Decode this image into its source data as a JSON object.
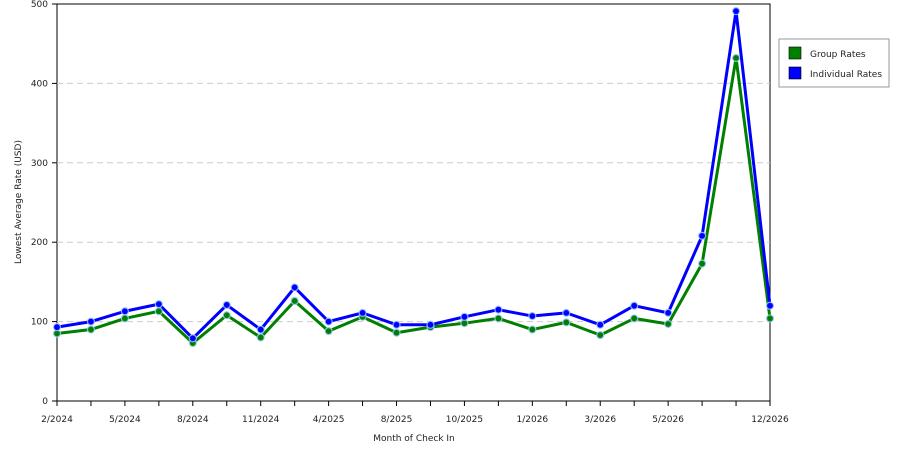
{
  "chart_data": {
    "type": "line",
    "title": "",
    "xlabel": "Month of Check In",
    "ylabel": "Lowest Average Rate (USD)",
    "ylim": [
      0,
      500
    ],
    "yticks": [
      0,
      100,
      200,
      300,
      400,
      500
    ],
    "grid": "horizontal dashed",
    "legend_position": "right",
    "x_tick_labels": [
      {
        "index": 0,
        "label": "2/2024"
      },
      {
        "index": 2,
        "label": "5/2024"
      },
      {
        "index": 4,
        "label": "8/2024"
      },
      {
        "index": 6,
        "label": "11/2024"
      },
      {
        "index": 8,
        "label": "4/2025"
      },
      {
        "index": 10,
        "label": "8/2025"
      },
      {
        "index": 12,
        "label": "10/2025"
      },
      {
        "index": 14,
        "label": "1/2026"
      },
      {
        "index": 16,
        "label": "3/2026"
      },
      {
        "index": 18,
        "label": "5/2026"
      },
      {
        "index": 21,
        "label": "12/2026"
      }
    ],
    "series": [
      {
        "name": "Group Rates",
        "color": "#008000",
        "values": [
          85,
          90,
          104,
          113,
          73,
          108,
          80,
          126,
          88,
          106,
          86,
          93,
          98,
          104,
          90,
          99,
          83,
          104,
          97,
          173,
          432,
          104
        ]
      },
      {
        "name": "Individual Rates",
        "color": "#0000ff",
        "values": [
          93,
          100,
          113,
          122,
          79,
          121,
          90,
          143,
          100,
          111,
          96,
          96,
          106,
          115,
          107,
          111,
          96,
          120,
          111,
          208,
          491,
          120
        ]
      }
    ]
  }
}
